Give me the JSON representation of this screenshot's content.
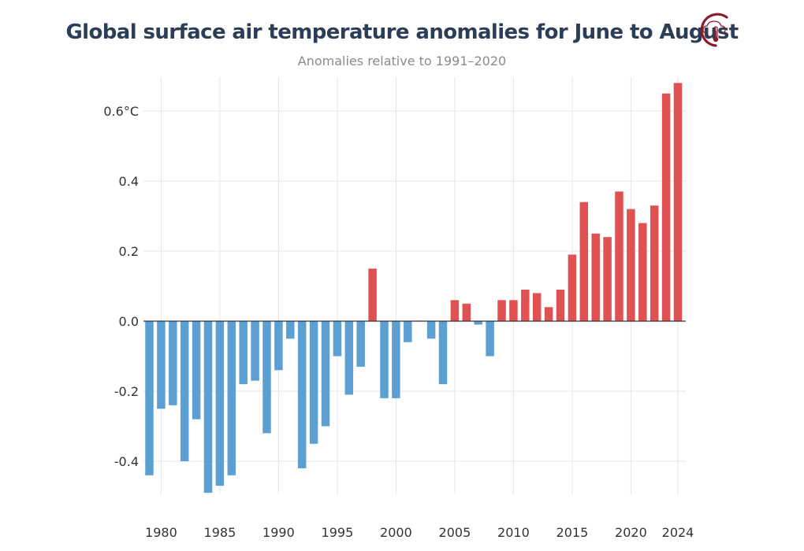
{
  "header": {
    "title": "Global surface air temperature anomalies for June to August",
    "subtitle": "Anomalies relative to 1991–2020"
  },
  "logo": {
    "icon": "thermometer-cloud-icon",
    "color": "#8b1a2b"
  },
  "colors": {
    "positive": "#e05252",
    "negative": "#5ca0d3",
    "grid": "#e6e6e6",
    "zero_line": "#333333"
  },
  "chart_data": {
    "type": "bar",
    "title": "Global surface air temperature anomalies for June to August",
    "subtitle": "Anomalies relative to 1991–2020",
    "xlabel": "",
    "ylabel": "",
    "x": [
      1979,
      1980,
      1981,
      1982,
      1983,
      1984,
      1985,
      1986,
      1987,
      1988,
      1989,
      1990,
      1991,
      1992,
      1993,
      1994,
      1995,
      1996,
      1997,
      1998,
      1999,
      2000,
      2001,
      2002,
      2003,
      2004,
      2005,
      2006,
      2007,
      2008,
      2009,
      2010,
      2011,
      2012,
      2013,
      2014,
      2015,
      2016,
      2017,
      2018,
      2019,
      2020,
      2021,
      2022,
      2023,
      2024
    ],
    "values": [
      -0.44,
      -0.25,
      -0.24,
      -0.4,
      -0.28,
      -0.49,
      -0.47,
      -0.44,
      -0.18,
      -0.17,
      -0.32,
      -0.14,
      -0.05,
      -0.42,
      -0.35,
      -0.3,
      -0.1,
      -0.21,
      -0.13,
      0.15,
      -0.22,
      -0.22,
      -0.06,
      0.0,
      -0.05,
      -0.18,
      0.06,
      0.05,
      -0.01,
      -0.1,
      0.06,
      0.06,
      0.09,
      0.08,
      0.04,
      0.09,
      0.19,
      0.34,
      0.25,
      0.24,
      0.37,
      0.32,
      0.28,
      0.33,
      0.65,
      0.68
    ],
    "ylim": [
      -0.5,
      0.68
    ],
    "yticks": [
      -0.4,
      -0.2,
      0.0,
      0.2,
      0.4,
      0.6
    ],
    "ytick_labels": [
      "-0.4",
      "-0.2",
      "0.0",
      "0.2",
      "0.4",
      "0.6°C"
    ],
    "xticks": [
      1980,
      1985,
      1990,
      1995,
      2000,
      2005,
      2010,
      2015,
      2020,
      2024
    ],
    "xtick_labels": [
      "1980",
      "1985",
      "1990",
      "1995",
      "2000",
      "2005",
      "2010",
      "2015",
      "2020",
      "2024"
    ],
    "grid": true,
    "legend": "none"
  }
}
